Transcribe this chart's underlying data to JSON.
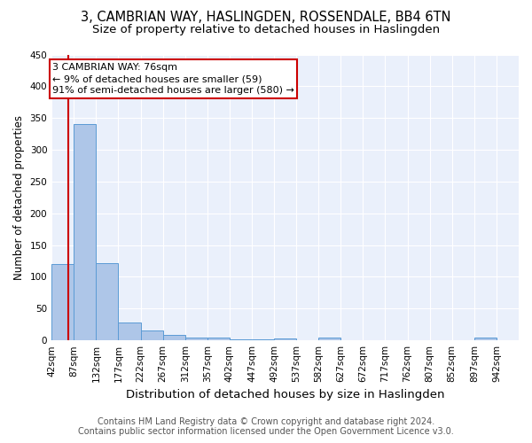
{
  "title": "3, CAMBRIAN WAY, HASLINGDEN, ROSSENDALE, BB4 6TN",
  "subtitle": "Size of property relative to detached houses in Haslingden",
  "xlabel": "Distribution of detached houses by size in Haslingden",
  "ylabel": "Number of detached properties",
  "footer_line1": "Contains HM Land Registry data © Crown copyright and database right 2024.",
  "footer_line2": "Contains public sector information licensed under the Open Government Licence v3.0.",
  "bar_labels": [
    "42sqm",
    "87sqm",
    "132sqm",
    "177sqm",
    "222sqm",
    "267sqm",
    "312sqm",
    "357sqm",
    "402sqm",
    "447sqm",
    "492sqm",
    "537sqm",
    "582sqm",
    "627sqm",
    "672sqm",
    "717sqm",
    "762sqm",
    "807sqm",
    "852sqm",
    "897sqm",
    "942sqm"
  ],
  "bar_values": [
    120,
    340,
    122,
    28,
    15,
    8,
    5,
    4,
    2,
    2,
    3,
    0,
    4,
    0,
    0,
    0,
    0,
    0,
    0,
    4,
    0
  ],
  "bar_color": "#aec6e8",
  "bar_edge_color": "#5b9bd5",
  "annotation_line1": "3 CAMBRIAN WAY: 76sqm",
  "annotation_line2": "← 9% of detached houses are smaller (59)",
  "annotation_line3": "91% of semi-detached houses are larger (580) →",
  "annotation_box_color": "#ffffff",
  "annotation_box_edge_color": "#cc0000",
  "redline_x": 76,
  "ylim": [
    0,
    450
  ],
  "background_color": "#eaf0fb",
  "grid_color": "#ffffff",
  "title_fontsize": 10.5,
  "subtitle_fontsize": 9.5,
  "xlabel_fontsize": 9.5,
  "ylabel_fontsize": 8.5,
  "tick_fontsize": 7.5,
  "annotation_fontsize": 8,
  "footer_fontsize": 7
}
